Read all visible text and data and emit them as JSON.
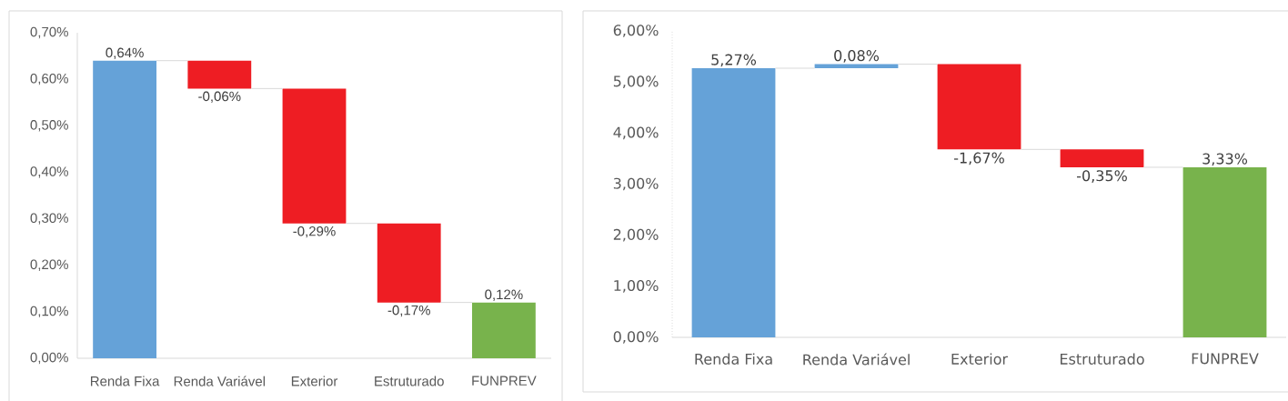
{
  "chart_data": [
    {
      "type": "bar",
      "categories": [
        "Renda Fixa",
        "Renda Variável",
        "Exterior",
        "Estruturado",
        "FUNPREV"
      ],
      "values": [
        0.64,
        -0.06,
        -0.29,
        -0.17,
        0.12
      ],
      "base": [
        0,
        0.64,
        0.58,
        0.29,
        0
      ],
      "colors": [
        "#65a2d8",
        "#ee1d23",
        "#ee1d23",
        "#ee1d23",
        "#78b34c"
      ],
      "value_labels": [
        "0,64%",
        "-0,06%",
        "-0,29%",
        "-0,17%",
        "0,12%"
      ],
      "ylim": [
        0,
        0.7
      ],
      "yticks": [
        {
          "value": 0,
          "label": "0,00%"
        },
        {
          "value": 0.1,
          "label": "0,10%"
        },
        {
          "value": 0.2,
          "label": "0,20%"
        },
        {
          "value": 0.3,
          "label": "0,30%"
        },
        {
          "value": 0.4,
          "label": "0,40%"
        },
        {
          "value": 0.5,
          "label": "0,50%"
        },
        {
          "value": 0.6,
          "label": "0,60%"
        },
        {
          "value": 0.7,
          "label": "0,70%"
        }
      ]
    },
    {
      "type": "bar",
      "categories": [
        "Renda Fixa",
        "Renda Variável",
        "Exterior",
        "Estruturado",
        "FUNPREV"
      ],
      "values": [
        5.27,
        0.08,
        -1.67,
        -0.35,
        3.33
      ],
      "base": [
        0,
        5.27,
        5.35,
        3.68,
        0
      ],
      "colors": [
        "#65a2d8",
        "#65a2d8",
        "#ee1d23",
        "#ee1d23",
        "#78b34c"
      ],
      "value_labels": [
        "5,27%",
        "0,08%",
        "-1,67%",
        "-0,35%",
        "3,33%"
      ],
      "ylim": [
        0,
        6
      ],
      "yticks": [
        {
          "value": 0,
          "label": "0,00%"
        },
        {
          "value": 1,
          "label": "1,00%"
        },
        {
          "value": 2,
          "label": "2,00%"
        },
        {
          "value": 3,
          "label": "3,00%"
        },
        {
          "value": 4,
          "label": "4,00%"
        },
        {
          "value": 5,
          "label": "5,00%"
        },
        {
          "value": 6,
          "label": "6,00%"
        }
      ]
    }
  ]
}
